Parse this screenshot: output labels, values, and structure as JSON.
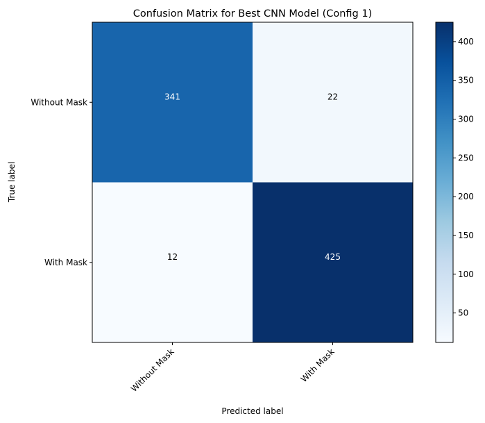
{
  "chart_data": {
    "type": "heatmap",
    "title": "Confusion Matrix for Best CNN Model (Config 1)",
    "xlabel": "Predicted label",
    "ylabel": "True label",
    "x_categories": [
      "Without Mask",
      "With Mask"
    ],
    "y_categories": [
      "Without Mask",
      "With Mask"
    ],
    "values": [
      [
        341,
        22
      ],
      [
        12,
        425
      ]
    ],
    "colormap": "Blues",
    "color_range": [
      12,
      425
    ],
    "colorbar_ticks": [
      50,
      100,
      150,
      200,
      250,
      300,
      350,
      400
    ],
    "grid": false,
    "legend": "colorbar-right"
  }
}
